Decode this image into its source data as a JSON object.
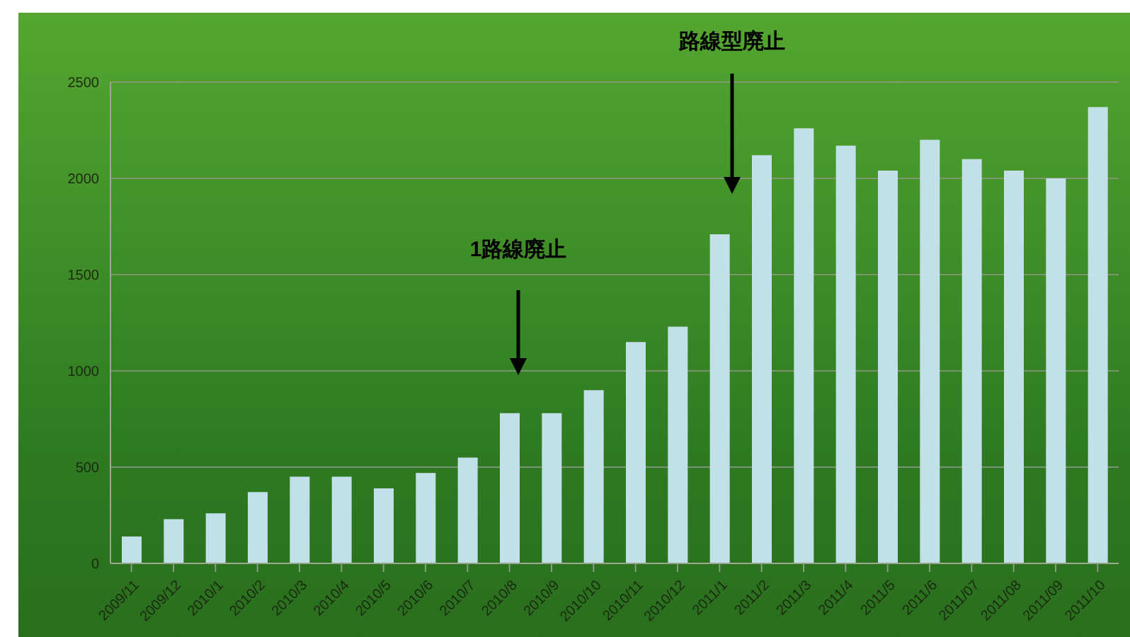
{
  "chart_data": {
    "type": "bar",
    "categories": [
      "2009/11",
      "2009/12",
      "2010/1",
      "2010/2",
      "2010/3",
      "2010/4",
      "2010/5",
      "2010/6",
      "2010/7",
      "2010/8",
      "2010/9",
      "2010/10",
      "2010/11",
      "2010/12",
      "2011/1",
      "2011/2",
      "2011/3",
      "2011/4",
      "2011/5",
      "2011/6",
      "2011/07",
      "2011/08",
      "2011/09",
      "2011/10"
    ],
    "values": [
      140,
      230,
      260,
      370,
      450,
      450,
      390,
      470,
      550,
      780,
      780,
      900,
      1150,
      1230,
      1710,
      2120,
      2260,
      2170,
      2040,
      2200,
      2100,
      2040,
      2000,
      2370
    ],
    "color": "#c2e0e8",
    "ylim": [
      0,
      2500
    ],
    "yticks": [
      0,
      500,
      1000,
      1500,
      2000,
      2500
    ],
    "grid": "y",
    "annotations": [
      "1路線廃止",
      "路線型廃止"
    ]
  }
}
